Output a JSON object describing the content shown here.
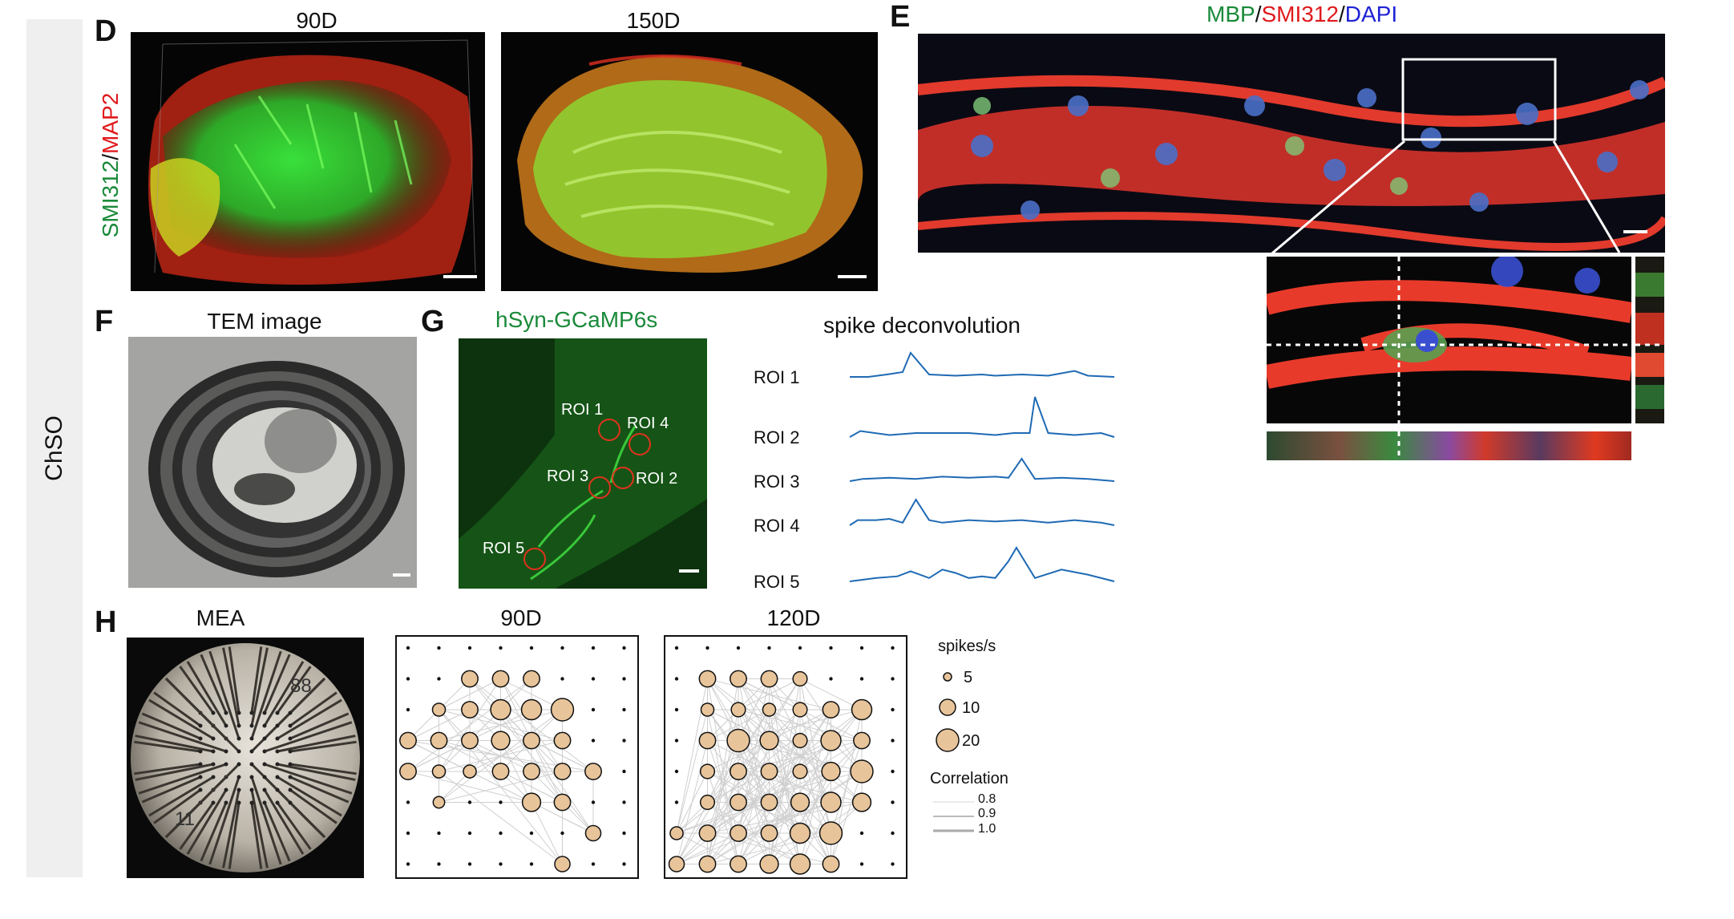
{
  "sidebar": {
    "label": "ChSO"
  },
  "panels": {
    "D": {
      "letter": "D",
      "title_90": "90D",
      "title_150": "150D",
      "ylabel_green": "SMI312",
      "ylabel_sep": "/",
      "ylabel_red": "MAP2"
    },
    "E": {
      "letter": "E",
      "t_green": "MBP",
      "sep1": "/",
      "t_red": "SMI312",
      "sep2": "/",
      "t_blue": "DAPI"
    },
    "F": {
      "letter": "F",
      "title": "TEM image"
    },
    "G": {
      "letter": "G",
      "title": "hSyn-GCaMP6s",
      "rois": [
        "ROI 1",
        "ROI 4",
        "ROI 3",
        "ROI 2",
        "ROI 5"
      ],
      "trace_title": "spike deconvolution"
    },
    "H": {
      "letter": "H",
      "mea_title": "MEA",
      "chip_88": "88",
      "chip_11": "11",
      "title_90": "90D",
      "title_120": "120D"
    }
  },
  "legend": {
    "spikes_title": "spikes/s",
    "sizes": [
      "5",
      "10",
      "20"
    ],
    "corr_title": "Correlation",
    "corr": [
      "0.8",
      "0.9",
      "1.0"
    ]
  },
  "chart_data": [
    {
      "type": "line",
      "title": "spike deconvolution",
      "series": [
        {
          "name": "ROI 1",
          "x": [
            0,
            0.07,
            0.14,
            0.2,
            0.23,
            0.3,
            0.4,
            0.5,
            0.55,
            0.65,
            0.75,
            0.85,
            0.9,
            1.0
          ],
          "values": [
            0,
            0,
            0.1,
            0.2,
            1.0,
            0.1,
            0.05,
            0.1,
            0.05,
            0.1,
            0.05,
            0.25,
            0.05,
            0
          ]
        },
        {
          "name": "ROI 2",
          "x": [
            0,
            0.04,
            0.15,
            0.25,
            0.35,
            0.45,
            0.55,
            0.62,
            0.68,
            0.7,
            0.75,
            0.85,
            0.95,
            1.0
          ],
          "values": [
            0,
            0.15,
            0.05,
            0.1,
            0.1,
            0.1,
            0.05,
            0.1,
            0.1,
            1.0,
            0.1,
            0.05,
            0.1,
            0
          ]
        },
        {
          "name": "ROI 3",
          "x": [
            0,
            0.05,
            0.15,
            0.25,
            0.35,
            0.45,
            0.55,
            0.6,
            0.65,
            0.7,
            0.8,
            0.9,
            1.0
          ],
          "values": [
            0,
            0.1,
            0.15,
            0.1,
            0.2,
            0.15,
            0.2,
            0.15,
            1.0,
            0.1,
            0.15,
            0.1,
            0
          ]
        },
        {
          "name": "ROI 4",
          "x": [
            0,
            0.03,
            0.1,
            0.15,
            0.2,
            0.25,
            0.3,
            0.35,
            0.45,
            0.55,
            0.65,
            0.75,
            0.85,
            0.95,
            1.0
          ],
          "values": [
            0,
            0.2,
            0.2,
            0.25,
            0.1,
            1.0,
            0.2,
            0.1,
            0.2,
            0.15,
            0.2,
            0.1,
            0.2,
            0.1,
            0
          ]
        },
        {
          "name": "ROI 5",
          "x": [
            0,
            0.1,
            0.18,
            0.23,
            0.3,
            0.35,
            0.4,
            0.45,
            0.5,
            0.55,
            0.6,
            0.63,
            0.7,
            0.8,
            0.9,
            1.0
          ],
          "values": [
            0,
            0.1,
            0.15,
            0.3,
            0.1,
            0.35,
            0.25,
            0.1,
            0.15,
            0.1,
            0.6,
            1.0,
            0.1,
            0.35,
            0.2,
            0
          ]
        }
      ]
    },
    {
      "type": "scatter",
      "title": "90D",
      "grid": 8,
      "points": [
        [
          2,
          1,
          8
        ],
        [
          3,
          1,
          8
        ],
        [
          4,
          1,
          8
        ],
        [
          1,
          2,
          5
        ],
        [
          2,
          2,
          8
        ],
        [
          3,
          2,
          12
        ],
        [
          4,
          2,
          12
        ],
        [
          5,
          2,
          15
        ],
        [
          0,
          3,
          8
        ],
        [
          1,
          3,
          8
        ],
        [
          2,
          3,
          8
        ],
        [
          3,
          3,
          10
        ],
        [
          4,
          3,
          8
        ],
        [
          5,
          3,
          8
        ],
        [
          0,
          4,
          8
        ],
        [
          1,
          4,
          5
        ],
        [
          2,
          4,
          5
        ],
        [
          3,
          4,
          8
        ],
        [
          4,
          4,
          8
        ],
        [
          5,
          4,
          8
        ],
        [
          6,
          4,
          8
        ],
        [
          1,
          5,
          4
        ],
        [
          4,
          5,
          10
        ],
        [
          5,
          5,
          8
        ],
        [
          6,
          6,
          7
        ],
        [
          5,
          7,
          7
        ]
      ]
    },
    {
      "type": "scatter",
      "title": "120D",
      "grid": 8,
      "points": [
        [
          1,
          1,
          8
        ],
        [
          2,
          1,
          8
        ],
        [
          3,
          1,
          8
        ],
        [
          4,
          1,
          6
        ],
        [
          1,
          2,
          5
        ],
        [
          2,
          2,
          6
        ],
        [
          3,
          2,
          5
        ],
        [
          4,
          2,
          6
        ],
        [
          5,
          2,
          8
        ],
        [
          6,
          2,
          12
        ],
        [
          1,
          3,
          8
        ],
        [
          2,
          3,
          15
        ],
        [
          3,
          3,
          10
        ],
        [
          4,
          3,
          6
        ],
        [
          5,
          3,
          12
        ],
        [
          6,
          3,
          8
        ],
        [
          1,
          4,
          6
        ],
        [
          2,
          4,
          8
        ],
        [
          3,
          4,
          8
        ],
        [
          4,
          4,
          6
        ],
        [
          5,
          4,
          10
        ],
        [
          6,
          4,
          15
        ],
        [
          1,
          5,
          6
        ],
        [
          2,
          5,
          8
        ],
        [
          3,
          5,
          8
        ],
        [
          4,
          5,
          10
        ],
        [
          5,
          5,
          12
        ],
        [
          6,
          5,
          10
        ],
        [
          0,
          6,
          5
        ],
        [
          1,
          6,
          8
        ],
        [
          2,
          6,
          8
        ],
        [
          3,
          6,
          8
        ],
        [
          4,
          6,
          12
        ],
        [
          5,
          6,
          15
        ],
        [
          0,
          7,
          7
        ],
        [
          1,
          7,
          8
        ],
        [
          2,
          7,
          8
        ],
        [
          3,
          7,
          10
        ],
        [
          4,
          7,
          12
        ],
        [
          5,
          7,
          8
        ]
      ]
    }
  ],
  "colors": {
    "green": "#1a8a3a",
    "red": "#e0191c",
    "blue": "#1e22d6",
    "trace": "#1f6ab4",
    "node": "#e8c49a"
  }
}
